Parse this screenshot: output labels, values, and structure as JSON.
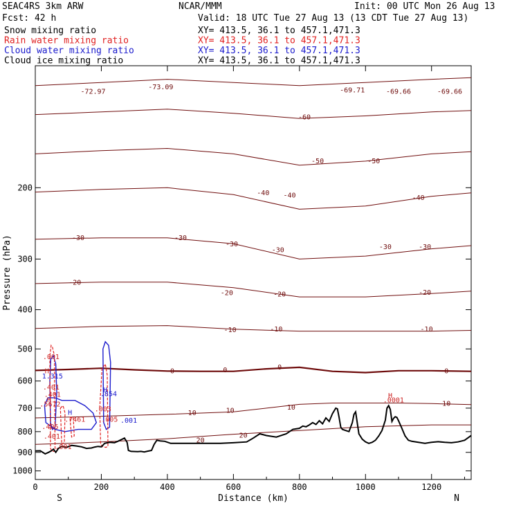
{
  "header": {
    "model": "SEAC4RS  3km ARW",
    "org": "NCAR/MMM",
    "init": "Init: 00 UTC Mon 26 Aug 13",
    "fcst": "Fcst:   42 h",
    "valid": "Valid: 18 UTC Tue 27 Aug 13 (13 CDT Tue 27 Aug 13)"
  },
  "legend": [
    {
      "name": "Snow mixing ratio",
      "xy": "XY= 413.5, 36.1 to 457.1,471.3",
      "color": "#000000"
    },
    {
      "name": "Rain water mixing ratio",
      "xy": "XY= 413.5, 36.1 to 457.1,471.3",
      "color": "#e02020"
    },
    {
      "name": "Cloud water mixing ratio",
      "xy": "XY= 413.5, 36.1 to 457.1,471.3",
      "color": "#1a1acc"
    },
    {
      "name": "Cloud ice mixing ratio",
      "xy": "XY= 413.5, 36.1 to 457.1,471.3",
      "color": "#000000"
    }
  ],
  "colors": {
    "temperature": "#6e0b0b",
    "rain": "#e02020",
    "cloud": "#1a1acc",
    "terrain": "#000000"
  },
  "chart_data": {
    "type": "line",
    "xlabel": "Distance (km)",
    "ylabel": "Pressure (hPa)",
    "xlim": [
      0,
      1320
    ],
    "ylim": [
      1050,
      100
    ],
    "y_scale": "log",
    "x_ticks": [
      "0",
      "200",
      "400",
      "600",
      "800",
      "1000",
      "1200"
    ],
    "y_ticks": [
      "200",
      "300",
      "400",
      "500",
      "600",
      "700",
      "800",
      "900",
      "1000"
    ],
    "x_end_labels": {
      "left": "S",
      "right": "N"
    },
    "terrain": {
      "x": [
        0,
        15,
        30,
        40,
        48,
        55,
        62,
        70,
        80,
        95,
        110,
        125,
        140,
        155,
        170,
        180,
        190,
        200,
        210,
        225,
        240,
        250,
        270,
        278,
        282,
        290,
        310,
        320,
        330,
        340,
        352,
        360,
        368,
        378,
        392,
        410,
        440,
        470,
        500,
        530,
        560,
        600,
        640,
        660,
        680,
        700,
        730,
        760,
        780,
        800,
        810,
        820,
        830,
        840,
        850,
        860,
        870,
        880,
        890,
        900,
        910,
        915,
        920,
        925,
        930,
        940,
        950,
        960,
        965,
        970,
        975,
        980,
        990,
        1000,
        1010,
        1020,
        1030,
        1040,
        1050,
        1060,
        1065,
        1070,
        1075,
        1080,
        1085,
        1090,
        1095,
        1100,
        1110,
        1120,
        1130,
        1140,
        1160,
        1180,
        1200,
        1220,
        1240,
        1260,
        1280,
        1300,
        1320
      ],
      "p": [
        893,
        892,
        908,
        900,
        893,
        884,
        900,
        880,
        870,
        875,
        865,
        868,
        872,
        880,
        878,
        873,
        870,
        872,
        855,
        850,
        852,
        845,
        830,
        850,
        890,
        895,
        896,
        895,
        898,
        894,
        890,
        860,
        840,
        843,
        845,
        855,
        855,
        855,
        855,
        855,
        855,
        852,
        848,
        830,
        810,
        818,
        825,
        810,
        790,
        785,
        775,
        778,
        770,
        760,
        768,
        752,
        765,
        740,
        755,
        722,
        700,
        703,
        738,
        780,
        790,
        795,
        800,
        760,
        725,
        715,
        760,
        810,
        835,
        848,
        855,
        850,
        840,
        820,
        795,
        750,
        700,
        690,
        705,
        755,
        742,
        735,
        738,
        752,
        785,
        820,
        840,
        845,
        850,
        855,
        850,
        847,
        850,
        852,
        848,
        840,
        818
      ]
    },
    "temperature_contours": [
      {
        "level": -70,
        "x": [
          0,
          200,
          400,
          600,
          800,
          1000,
          1200,
          1320
        ],
        "p": [
          112,
          110,
          108,
          110,
          112,
          110,
          108,
          107
        ]
      },
      {
        "level": -60,
        "x": [
          0,
          200,
          400,
          600,
          800,
          1000,
          1200,
          1320
        ],
        "p": [
          132,
          130,
          128,
          131,
          135,
          133,
          130,
          129
        ]
      },
      {
        "level": -50,
        "x": [
          0,
          200,
          400,
          600,
          800,
          1000,
          1200,
          1320
        ],
        "p": [
          165,
          162,
          160,
          165,
          176,
          172,
          165,
          163
        ]
      },
      {
        "level": -40,
        "x": [
          0,
          200,
          400,
          600,
          800,
          1000,
          1200,
          1320
        ],
        "p": [
          205,
          202,
          200,
          208,
          226,
          222,
          210,
          206
        ]
      },
      {
        "level": -30,
        "x": [
          0,
          200,
          400,
          600,
          800,
          1000,
          1200,
          1320
        ],
        "p": [
          268,
          266,
          266,
          275,
          300,
          295,
          283,
          278
        ]
      },
      {
        "level": -20,
        "x": [
          0,
          200,
          400,
          600,
          800,
          1000,
          1200,
          1320
        ],
        "p": [
          345,
          342,
          342,
          353,
          372,
          372,
          365,
          360
        ]
      },
      {
        "level": -10,
        "x": [
          0,
          200,
          400,
          600,
          800,
          1000,
          1200,
          1320
        ],
        "p": [
          445,
          440,
          438,
          447,
          452,
          452,
          452,
          450
        ]
      },
      {
        "level": 0,
        "x": [
          0,
          100,
          200,
          300,
          400,
          500,
          600,
          700,
          800,
          900,
          1000,
          1100,
          1200,
          1320
        ],
        "p": [
          565,
          562,
          558,
          563,
          567,
          568,
          568,
          560,
          555,
          568,
          572,
          566,
          566,
          568
        ]
      },
      {
        "level": 10,
        "x": [
          0,
          200,
          400,
          600,
          700,
          800,
          900,
          1000,
          1100,
          1200,
          1320
        ],
        "p": [
          740,
          733,
          725,
          715,
          700,
          685,
          680,
          680,
          680,
          682,
          686
        ]
      },
      {
        "level": 20,
        "x": [
          0,
          100,
          200,
          400,
          600,
          800,
          1000,
          1200,
          1320
        ],
        "p": [
          860,
          855,
          848,
          833,
          812,
          795,
          778,
          770,
          770
        ]
      }
    ],
    "contour_labels": [
      {
        "text": "-72.97",
        "x": 175,
        "p": 116
      },
      {
        "text": "-73.09",
        "x": 380,
        "p": 113
      },
      {
        "text": "-69.71",
        "x": 960,
        "p": 115
      },
      {
        "text": "-69.66",
        "x": 1100,
        "p": 116
      },
      {
        "text": "-69.66",
        "x": 1255,
        "p": 116
      },
      {
        "text": "-60",
        "x": 815,
        "p": 134
      },
      {
        "text": "-50",
        "x": 855,
        "p": 172
      },
      {
        "text": "-50",
        "x": 1025,
        "p": 172
      },
      {
        "text": "-40",
        "x": 690,
        "p": 206
      },
      {
        "text": "-40",
        "x": 770,
        "p": 209
      },
      {
        "text": "-40",
        "x": 1160,
        "p": 212
      },
      {
        "text": "-30",
        "x": 130,
        "p": 266
      },
      {
        "text": "-30",
        "x": 440,
        "p": 266
      },
      {
        "text": "-30",
        "x": 595,
        "p": 276
      },
      {
        "text": "-30",
        "x": 735,
        "p": 285
      },
      {
        "text": "-30",
        "x": 1060,
        "p": 280
      },
      {
        "text": "-30",
        "x": 1180,
        "p": 280
      },
      {
        "text": "-20",
        "x": 120,
        "p": 343
      },
      {
        "text": "-20",
        "x": 580,
        "p": 364
      },
      {
        "text": "-20",
        "x": 740,
        "p": 367
      },
      {
        "text": "-20",
        "x": 1180,
        "p": 363
      },
      {
        "text": "-10",
        "x": 590,
        "p": 449
      },
      {
        "text": "-10",
        "x": 730,
        "p": 447
      },
      {
        "text": "-10",
        "x": 1185,
        "p": 447
      },
      {
        "text": "0",
        "x": 415,
        "p": 568
      },
      {
        "text": "0",
        "x": 575,
        "p": 564
      },
      {
        "text": "0",
        "x": 740,
        "p": 555
      },
      {
        "text": "0",
        "x": 1245,
        "p": 568
      },
      {
        "text": "10",
        "x": 475,
        "p": 720
      },
      {
        "text": "10",
        "x": 590,
        "p": 710
      },
      {
        "text": "10",
        "x": 775,
        "p": 697
      },
      {
        "text": "10",
        "x": 1245,
        "p": 682
      },
      {
        "text": "20",
        "x": 500,
        "p": 840
      },
      {
        "text": "20",
        "x": 630,
        "p": 818
      }
    ],
    "rain_labels": [
      {
        "text": ".001",
        "x": 48,
        "p": 524
      },
      {
        "text": "H",
        "x": 35,
        "p": 568
      },
      {
        "text": ".401",
        "x": 48,
        "p": 623
      },
      {
        "text": ".401",
        "x": 52,
        "p": 648
      },
      {
        "text": "H",
        "x": 42,
        "p": 668
      },
      {
        "text": ".5672",
        "x": 45,
        "p": 686
      },
      {
        "text": ".7461",
        "x": 120,
        "p": 747
      },
      {
        "text": ".405",
        "x": 45,
        "p": 778
      },
      {
        "text": ".401",
        "x": 50,
        "p": 823
      },
      {
        "text": ".001",
        "x": 85,
        "p": 872
      },
      {
        "text": ".003",
        "x": 205,
        "p": 705
      },
      {
        "text": ".005",
        "x": 225,
        "p": 748
      },
      {
        "text": "H",
        "x": 1075,
        "p": 652
      },
      {
        "text": ".0001",
        "x": 1085,
        "p": 670
      }
    ],
    "cloud_labels": [
      {
        "text": "1.315",
        "x": 52,
        "p": 585
      },
      {
        "text": "H",
        "x": 212,
        "p": 632
      },
      {
        "text": ".854",
        "x": 222,
        "p": 646
      },
      {
        "text": "H",
        "x": 105,
        "p": 718
      },
      {
        "text": ".001",
        "x": 283,
        "p": 752
      }
    ],
    "rain_columns": [
      {
        "x": [
          44,
          48,
          52,
          58,
          60,
          56,
          50,
          46
        ],
        "p": [
          520,
          490,
          495,
          520,
          890,
          895,
          892,
          880
        ]
      },
      {
        "x": [
          195,
          202,
          212,
          218,
          220,
          214,
          205,
          198
        ],
        "p": [
          700,
          560,
          545,
          580,
          870,
          875,
          872,
          860
        ]
      },
      {
        "x": [
          76,
          84,
          90,
          88,
          80
        ],
        "p": [
          700,
          690,
          720,
          850,
          860
        ]
      },
      {
        "x": [
          105,
          115,
          118,
          110
        ],
        "p": [
          740,
          735,
          820,
          825
        ]
      }
    ],
    "cloud_columns": [
      {
        "x": [
          47,
          55,
          62,
          65,
          60,
          52,
          46,
          44
        ],
        "p": [
          530,
          520,
          545,
          640,
          780,
          790,
          760,
          600
        ]
      },
      {
        "x": [
          205,
          212,
          222,
          228,
          225,
          215,
          207
        ],
        "p": [
          500,
          480,
          490,
          540,
          780,
          790,
          760
        ]
      },
      {
        "x": [
          28,
          38,
          60,
          80,
          120,
          150,
          175,
          185,
          170,
          130,
          90,
          60,
          32
        ],
        "p": [
          690,
          660,
          660,
          670,
          670,
          690,
          720,
          760,
          790,
          790,
          800,
          790,
          760
        ]
      }
    ]
  }
}
